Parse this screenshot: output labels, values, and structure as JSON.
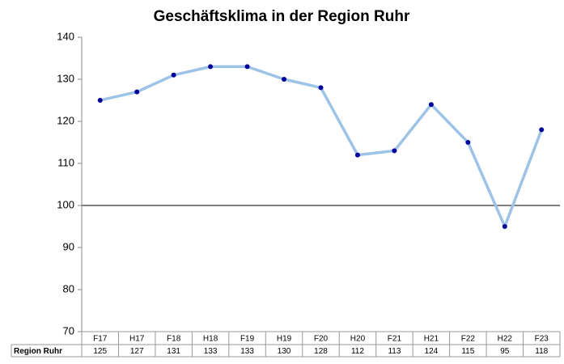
{
  "chart_data": {
    "type": "line",
    "title": "Geschäftsklima in der Region Ruhr",
    "categories": [
      "F17",
      "H17",
      "F18",
      "H18",
      "F19",
      "H19",
      "F20",
      "H20",
      "F21",
      "H21",
      "F22",
      "H22",
      "F23"
    ],
    "series": [
      {
        "name": "Region Ruhr",
        "color": "#9dc3e6",
        "marker_color": "#00009c",
        "values": [
          125,
          127,
          131,
          133,
          133,
          130,
          128,
          112,
          113,
          124,
          115,
          95,
          118
        ]
      }
    ],
    "ylim": [
      70,
      140
    ],
    "yticks": [
      70,
      80,
      90,
      100,
      110,
      120,
      130,
      140
    ],
    "reference_line": 100,
    "data_table": true
  }
}
